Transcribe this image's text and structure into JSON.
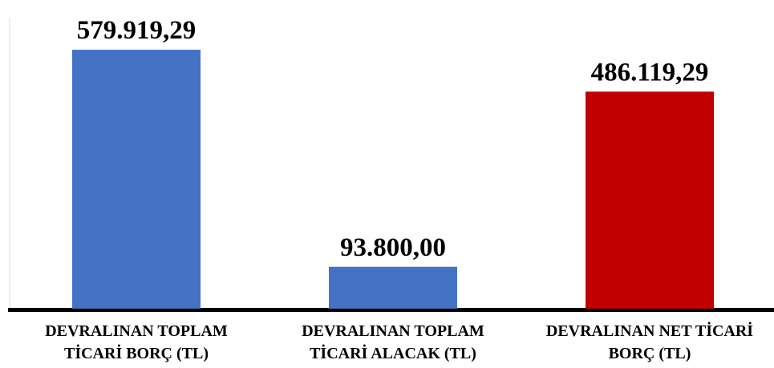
{
  "chart_data": {
    "type": "bar",
    "categories": [
      [
        "DEVRALINAN TOPLAM",
        "TİCARİ BORÇ (TL)"
      ],
      [
        "DEVRALINAN TOPLAM",
        "TİCARİ ALACAK (TL)"
      ],
      [
        "DEVRALINAN NET TİCARİ",
        "BORÇ (TL)"
      ]
    ],
    "values": [
      579919.29,
      93800.0,
      486119.29
    ],
    "data_labels": [
      "579.919,29",
      "93.800,00",
      "486.119,29"
    ],
    "colors": [
      "#4472C4",
      "#4472C4",
      "#C00000"
    ],
    "ylim": [
      0,
      580000
    ],
    "grid": false,
    "legend": "none"
  }
}
